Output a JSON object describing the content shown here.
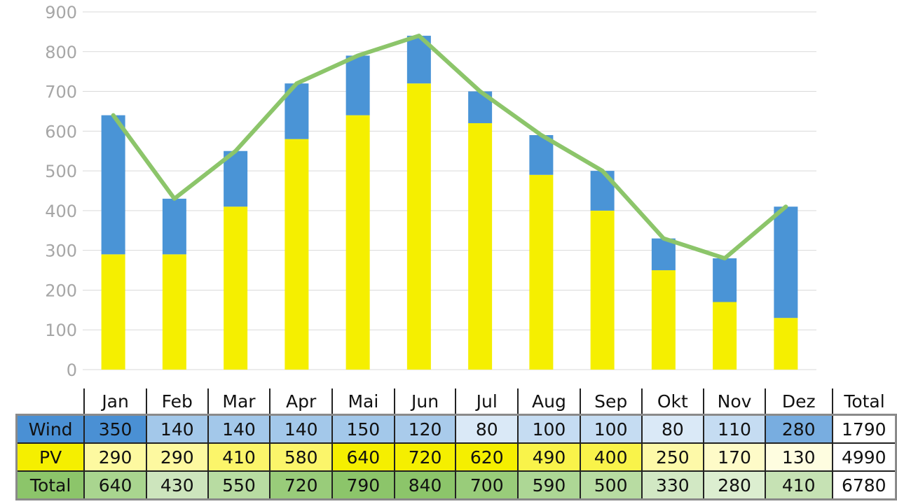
{
  "chart_data": {
    "type": "bar",
    "stacked": true,
    "categories": [
      "Jan",
      "Feb",
      "Mar",
      "Apr",
      "Mai",
      "Jun",
      "Jul",
      "Aug",
      "Sep",
      "Okt",
      "Nov",
      "Dez"
    ],
    "series": [
      {
        "name": "PV",
        "kind": "bar",
        "color": "#f5ef00",
        "values": [
          290,
          290,
          410,
          580,
          640,
          720,
          620,
          490,
          400,
          250,
          170,
          130
        ]
      },
      {
        "name": "Wind",
        "kind": "bar",
        "color": "#4a94d6",
        "values": [
          350,
          140,
          140,
          140,
          150,
          120,
          80,
          100,
          100,
          80,
          110,
          280
        ]
      },
      {
        "name": "Total",
        "kind": "line",
        "color": "#8cc56a",
        "values": [
          640,
          430,
          550,
          720,
          790,
          840,
          700,
          590,
          500,
          330,
          280,
          410
        ]
      }
    ],
    "ylim": [
      0,
      900
    ],
    "yticks": [
      0,
      100,
      200,
      300,
      400,
      500,
      600,
      700,
      800,
      900
    ],
    "grid": true
  },
  "table": {
    "header": [
      "Jan",
      "Feb",
      "Mar",
      "Apr",
      "Mai",
      "Jun",
      "Jul",
      "Aug",
      "Sep",
      "Okt",
      "Nov",
      "Dez",
      "Total"
    ],
    "rows": [
      {
        "label": "Wind",
        "label_color": "#4a90d4",
        "values": [
          "350",
          "140",
          "140",
          "140",
          "150",
          "120",
          "80",
          "100",
          "100",
          "80",
          "110",
          "280"
        ],
        "total": "1790",
        "colors": [
          "#4a90d4",
          "#a3c8ea",
          "#a3c8ea",
          "#a3c8ea",
          "#a3c8ea",
          "#a9cbeb",
          "#dae9f7",
          "#c5dcf2",
          "#c5dcf2",
          "#dae9f7",
          "#c5dcf2",
          "#78ade0"
        ]
      },
      {
        "label": "PV",
        "label_color": "#f5ef00",
        "values": [
          "290",
          "290",
          "410",
          "580",
          "640",
          "720",
          "620",
          "490",
          "400",
          "250",
          "170",
          "130"
        ],
        "total": "4990",
        "colors": [
          "#fdf9a0",
          "#fdf9a0",
          "#fbf56a",
          "#fbf56a",
          "#f5ef00",
          "#f5ef00",
          "#f5ef00",
          "#f9f34a",
          "#f9f34a",
          "#fdf9a8",
          "#fefbc8",
          "#fefde0"
        ]
      },
      {
        "label": "Total",
        "label_color": "#8cc56a",
        "values": [
          "640",
          "430",
          "550",
          "720",
          "790",
          "840",
          "700",
          "590",
          "500",
          "330",
          "280",
          "410"
        ],
        "total": "6780",
        "colors": [
          "#a9d58f",
          "#cde5bd",
          "#b8dca2",
          "#99cc7a",
          "#8cc56a",
          "#8cc56a",
          "#99cc7a",
          "#add795",
          "#b8dca2",
          "#d2e8c4",
          "#dceed0",
          "#c6e2b4"
        ]
      }
    ]
  }
}
